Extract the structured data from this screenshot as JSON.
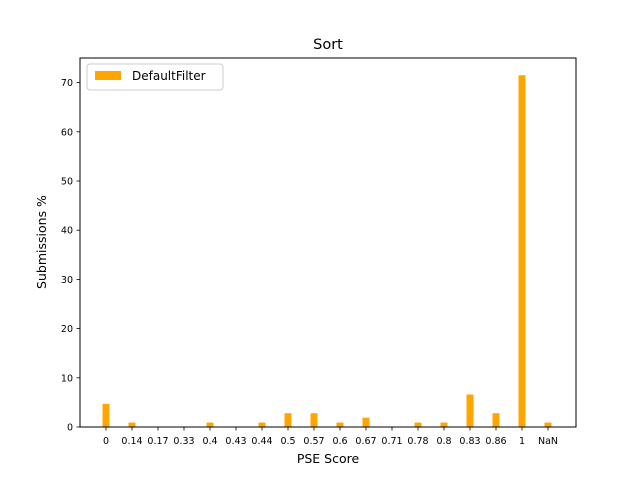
{
  "chart_data": {
    "type": "bar",
    "title": "Sort",
    "xlabel": "PSE Score",
    "ylabel": "Submissions %",
    "categories": [
      "0",
      "0.14",
      "0.17",
      "0.33",
      "0.4",
      "0.43",
      "0.44",
      "0.5",
      "0.57",
      "0.6",
      "0.67",
      "0.71",
      "0.78",
      "0.8",
      "0.83",
      "0.86",
      "1",
      "NaN"
    ],
    "series": [
      {
        "name": "DefaultFilter",
        "color": "#ffa500",
        "values": [
          4.7,
          0.9,
          0.0,
          0.0,
          0.9,
          0.0,
          0.9,
          2.8,
          2.8,
          0.9,
          1.9,
          0.0,
          0.9,
          0.9,
          6.6,
          2.8,
          71.5,
          0.9
        ]
      }
    ],
    "ylim": [
      0,
      75
    ],
    "yticks": [
      0,
      10,
      20,
      30,
      40,
      50,
      60,
      70
    ],
    "grid": false,
    "legend": "top-left"
  }
}
